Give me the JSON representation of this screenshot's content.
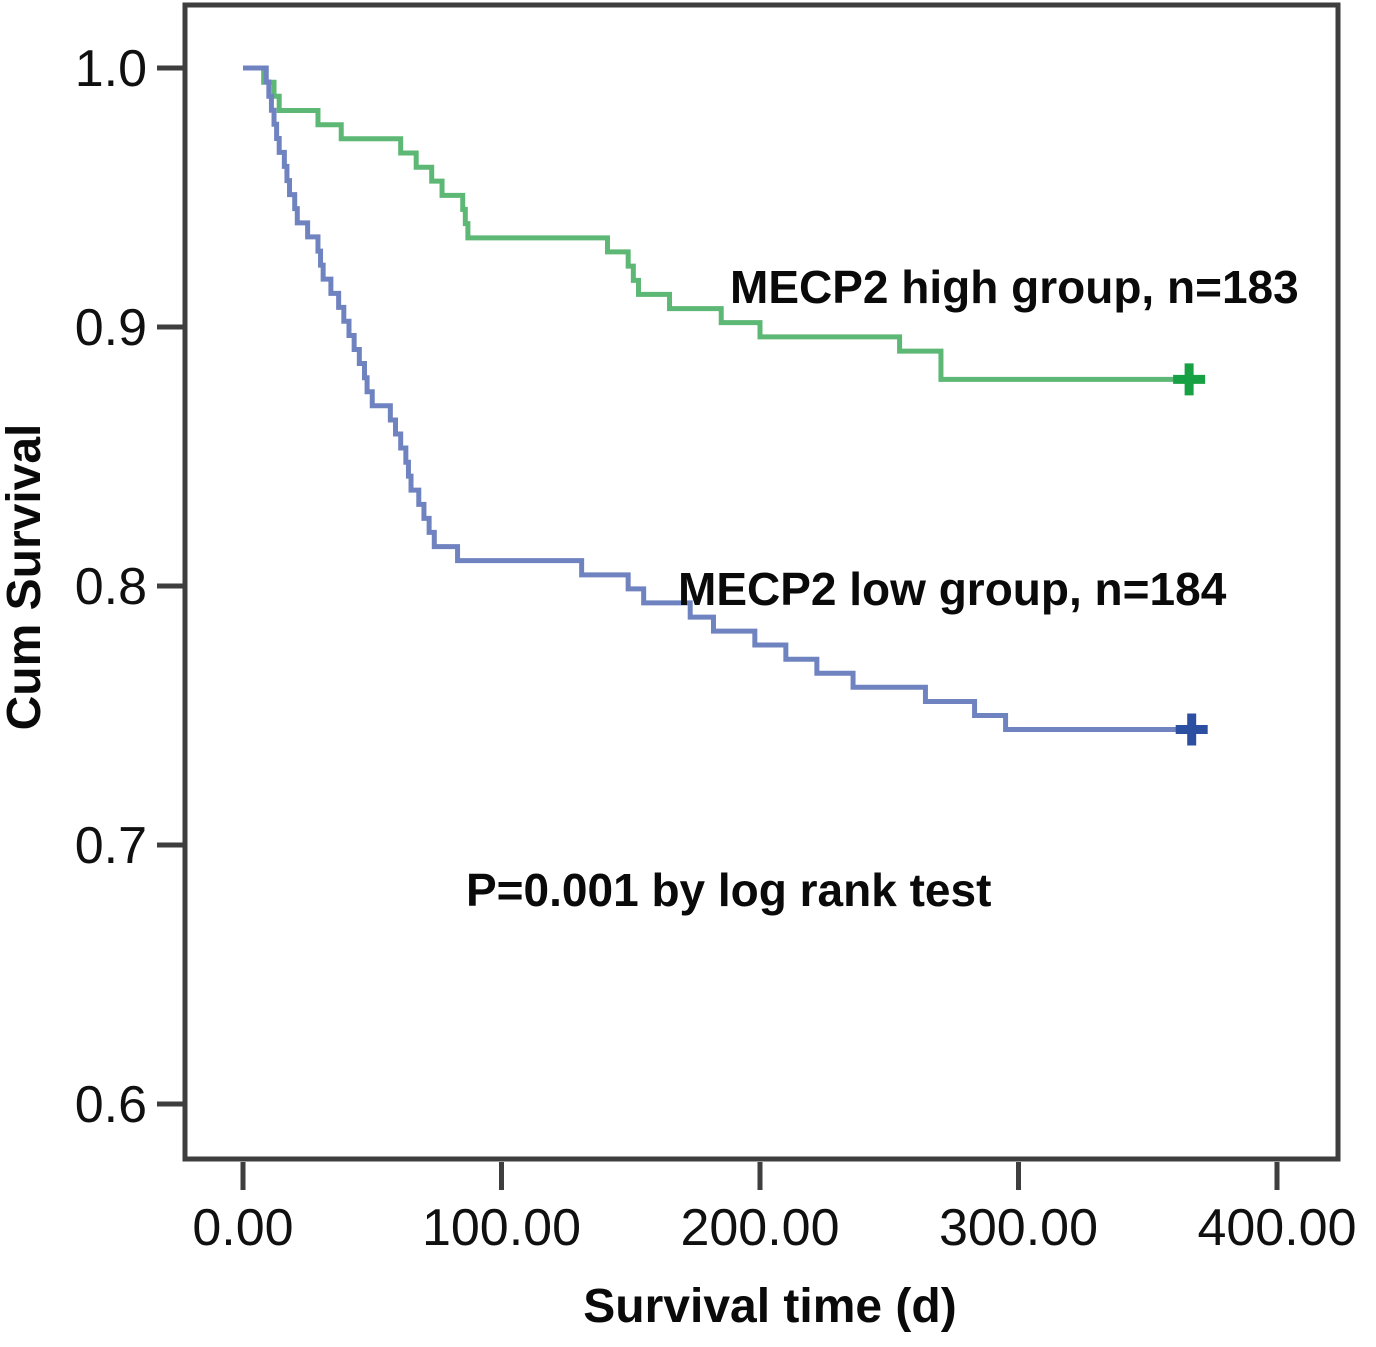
{
  "chart_data": {
    "type": "line",
    "variant": "kaplan_meier_step",
    "title": "",
    "xlabel": "Survival time (d)",
    "ylabel": "Cum Survival",
    "x_ticks": [
      0,
      100,
      200,
      300,
      400
    ],
    "x_tick_labels": [
      "0.00",
      "100.00",
      "200.00",
      "300.00",
      "400.00"
    ],
    "y_ticks": [
      1.0,
      0.9,
      0.8,
      0.7,
      0.6
    ],
    "y_tick_labels": [
      "1.0",
      "0.9",
      "0.8",
      "0.7",
      "0.6"
    ],
    "xlim": [
      -22.5,
      424
    ],
    "ylim": [
      0.578,
      1.024
    ],
    "grid": false,
    "legend_position": "inline-annotations",
    "annotations": {
      "high_group": "MECP2 high group, n=183",
      "low_group": "MECP2 low group, n=184",
      "p_value": "P=0.001 by log rank test"
    },
    "series": [
      {
        "name": "MECP2 high group",
        "n": 183,
        "color": "#5cb874",
        "censor_color": "#17a144",
        "censored_at": [
          366,
          0.8798
        ],
        "steps": [
          [
            0,
            1.0
          ],
          [
            8,
            0.9945
          ],
          [
            12,
            0.9891
          ],
          [
            14,
            0.9836
          ],
          [
            29,
            0.9781
          ],
          [
            38,
            0.9727
          ],
          [
            61,
            0.9672
          ],
          [
            67,
            0.9617
          ],
          [
            73,
            0.9563
          ],
          [
            77,
            0.9508
          ],
          [
            85,
            0.9454
          ],
          [
            86,
            0.9399
          ],
          [
            87,
            0.9344
          ],
          [
            141,
            0.929
          ],
          [
            149,
            0.9235
          ],
          [
            151,
            0.918
          ],
          [
            153,
            0.9126
          ],
          [
            165,
            0.9071
          ],
          [
            185,
            0.9017
          ],
          [
            200,
            0.8962
          ],
          [
            254,
            0.8907
          ],
          [
            270,
            0.8798
          ]
        ]
      },
      {
        "name": "MECP2 low group",
        "n": 184,
        "color": "#7083c1",
        "censor_color": "#2d4fa1",
        "censored_at": [
          367,
          0.7446
        ],
        "steps": [
          [
            0,
            1.0
          ],
          [
            9,
            0.9946
          ],
          [
            10,
            0.9891
          ],
          [
            11,
            0.9837
          ],
          [
            12,
            0.9783
          ],
          [
            13,
            0.9728
          ],
          [
            14,
            0.9674
          ],
          [
            16,
            0.962
          ],
          [
            17,
            0.9565
          ],
          [
            18,
            0.9511
          ],
          [
            20,
            0.9457
          ],
          [
            21,
            0.9402
          ],
          [
            25,
            0.9348
          ],
          [
            29,
            0.9293
          ],
          [
            30,
            0.9239
          ],
          [
            31,
            0.9185
          ],
          [
            34,
            0.913
          ],
          [
            37,
            0.9076
          ],
          [
            39,
            0.9022
          ],
          [
            41,
            0.8967
          ],
          [
            43,
            0.8913
          ],
          [
            45,
            0.8859
          ],
          [
            47,
            0.8804
          ],
          [
            48,
            0.875
          ],
          [
            50,
            0.8696
          ],
          [
            57,
            0.8641
          ],
          [
            59,
            0.8587
          ],
          [
            61,
            0.8533
          ],
          [
            63,
            0.8478
          ],
          [
            64,
            0.8424
          ],
          [
            65,
            0.837
          ],
          [
            68,
            0.8315
          ],
          [
            70,
            0.8261
          ],
          [
            72,
            0.8207
          ],
          [
            74,
            0.8152
          ],
          [
            83,
            0.8098
          ],
          [
            131,
            0.8043
          ],
          [
            149,
            0.7989
          ],
          [
            155,
            0.7935
          ],
          [
            173,
            0.788
          ],
          [
            182,
            0.7826
          ],
          [
            198,
            0.7772
          ],
          [
            210,
            0.7717
          ],
          [
            222,
            0.7663
          ],
          [
            236,
            0.7609
          ],
          [
            264,
            0.7554
          ],
          [
            283,
            0.75
          ],
          [
            295,
            0.7446
          ]
        ]
      }
    ]
  }
}
